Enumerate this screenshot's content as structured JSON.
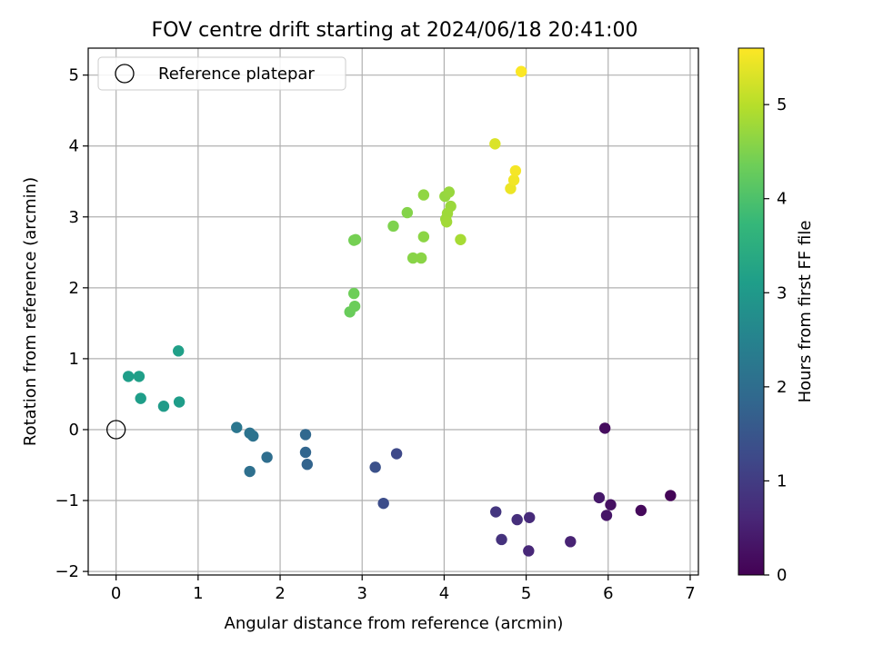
{
  "chart_data": {
    "type": "scatter",
    "title": "FOV centre drift starting at 2024/06/18 20:41:00",
    "xlabel": "Angular distance from reference (arcmin)",
    "ylabel": "Rotation from reference (arcmin)",
    "xlim": [
      -0.34,
      7.1
    ],
    "ylim": [
      -2.05,
      5.38
    ],
    "xticks": [
      0,
      1,
      2,
      3,
      4,
      5,
      6,
      7
    ],
    "xtick_labels": [
      "0",
      "1",
      "2",
      "3",
      "4",
      "5",
      "6",
      "7"
    ],
    "yticks": [
      -2,
      -1,
      0,
      1,
      2,
      3,
      4,
      5
    ],
    "ytick_labels": [
      "−2",
      "−1",
      "0",
      "1",
      "2",
      "3",
      "4",
      "5"
    ],
    "grid": true,
    "legend": {
      "placement": "top-left",
      "entries": [
        {
          "label": "Reference platepar",
          "marker": "open-circle",
          "color": "#000000"
        }
      ]
    },
    "reference_point": {
      "x": 0,
      "y": 0
    },
    "colorbar": {
      "label": "Hours from first FF file",
      "range": [
        0,
        5.6
      ],
      "ticks": [
        0,
        1,
        2,
        3,
        4,
        5
      ],
      "tick_labels": [
        "0",
        "1",
        "2",
        "3",
        "4",
        "5"
      ],
      "colormap": "viridis",
      "colormap_stops": [
        "#440154",
        "#482878",
        "#3e4989",
        "#31688e",
        "#26828e",
        "#1f9e89",
        "#35b779",
        "#6ece58",
        "#b5de2b",
        "#fde725"
      ]
    },
    "points": [
      {
        "x": 6.76,
        "y": -0.93,
        "h": 0.05
      },
      {
        "x": 6.4,
        "y": -1.14,
        "h": 0.12
      },
      {
        "x": 5.96,
        "y": 0.02,
        "h": 0.18
      },
      {
        "x": 6.03,
        "y": -1.06,
        "h": 0.25
      },
      {
        "x": 5.98,
        "y": -1.21,
        "h": 0.32
      },
      {
        "x": 5.89,
        "y": -0.96,
        "h": 0.38
      },
      {
        "x": 5.54,
        "y": -1.58,
        "h": 0.55
      },
      {
        "x": 5.03,
        "y": -1.71,
        "h": 0.62
      },
      {
        "x": 5.04,
        "y": -1.24,
        "h": 0.68
      },
      {
        "x": 4.89,
        "y": -1.27,
        "h": 0.75
      },
      {
        "x": 4.7,
        "y": -1.55,
        "h": 0.82
      },
      {
        "x": 4.63,
        "y": -1.16,
        "h": 0.88
      },
      {
        "x": 3.42,
        "y": -0.34,
        "h": 1.25
      },
      {
        "x": 3.26,
        "y": -1.04,
        "h": 1.32
      },
      {
        "x": 3.16,
        "y": -0.53,
        "h": 1.4
      },
      {
        "x": 2.33,
        "y": -0.49,
        "h": 1.78
      },
      {
        "x": 2.31,
        "y": -0.32,
        "h": 1.82
      },
      {
        "x": 2.31,
        "y": -0.07,
        "h": 1.86
      },
      {
        "x": 1.84,
        "y": -0.39,
        "h": 2.0
      },
      {
        "x": 1.63,
        "y": -0.59,
        "h": 2.05
      },
      {
        "x": 1.67,
        "y": -0.09,
        "h": 2.1
      },
      {
        "x": 1.63,
        "y": -0.05,
        "h": 2.14
      },
      {
        "x": 1.47,
        "y": 0.03,
        "h": 2.2
      },
      {
        "x": 0.58,
        "y": 0.33,
        "h": 3.05
      },
      {
        "x": 0.77,
        "y": 0.39,
        "h": 3.08
      },
      {
        "x": 0.3,
        "y": 0.44,
        "h": 3.1
      },
      {
        "x": 0.15,
        "y": 0.75,
        "h": 3.12
      },
      {
        "x": 0.28,
        "y": 0.75,
        "h": 3.14
      },
      {
        "x": 0.76,
        "y": 1.11,
        "h": 3.16
      },
      {
        "x": 2.85,
        "y": 1.66,
        "h": 4.3
      },
      {
        "x": 2.91,
        "y": 1.74,
        "h": 4.32
      },
      {
        "x": 2.9,
        "y": 1.92,
        "h": 4.35
      },
      {
        "x": 2.9,
        "y": 2.67,
        "h": 4.4
      },
      {
        "x": 2.92,
        "y": 2.68,
        "h": 4.42
      },
      {
        "x": 3.38,
        "y": 2.87,
        "h": 4.5
      },
      {
        "x": 3.55,
        "y": 3.06,
        "h": 4.55
      },
      {
        "x": 3.62,
        "y": 2.42,
        "h": 4.58
      },
      {
        "x": 3.72,
        "y": 2.42,
        "h": 4.6
      },
      {
        "x": 3.75,
        "y": 2.72,
        "h": 4.62
      },
      {
        "x": 3.75,
        "y": 3.31,
        "h": 4.65
      },
      {
        "x": 4.01,
        "y": 3.29,
        "h": 4.7
      },
      {
        "x": 4.06,
        "y": 3.35,
        "h": 4.72
      },
      {
        "x": 4.08,
        "y": 3.15,
        "h": 4.74
      },
      {
        "x": 4.02,
        "y": 2.97,
        "h": 4.76
      },
      {
        "x": 4.04,
        "y": 3.05,
        "h": 4.78
      },
      {
        "x": 4.03,
        "y": 2.93,
        "h": 4.8
      },
      {
        "x": 4.2,
        "y": 2.68,
        "h": 4.85
      },
      {
        "x": 4.62,
        "y": 4.03,
        "h": 5.3
      },
      {
        "x": 4.81,
        "y": 3.4,
        "h": 5.45
      },
      {
        "x": 4.85,
        "y": 3.52,
        "h": 5.5
      },
      {
        "x": 4.87,
        "y": 3.65,
        "h": 5.53
      },
      {
        "x": 4.94,
        "y": 5.05,
        "h": 5.58
      }
    ]
  }
}
